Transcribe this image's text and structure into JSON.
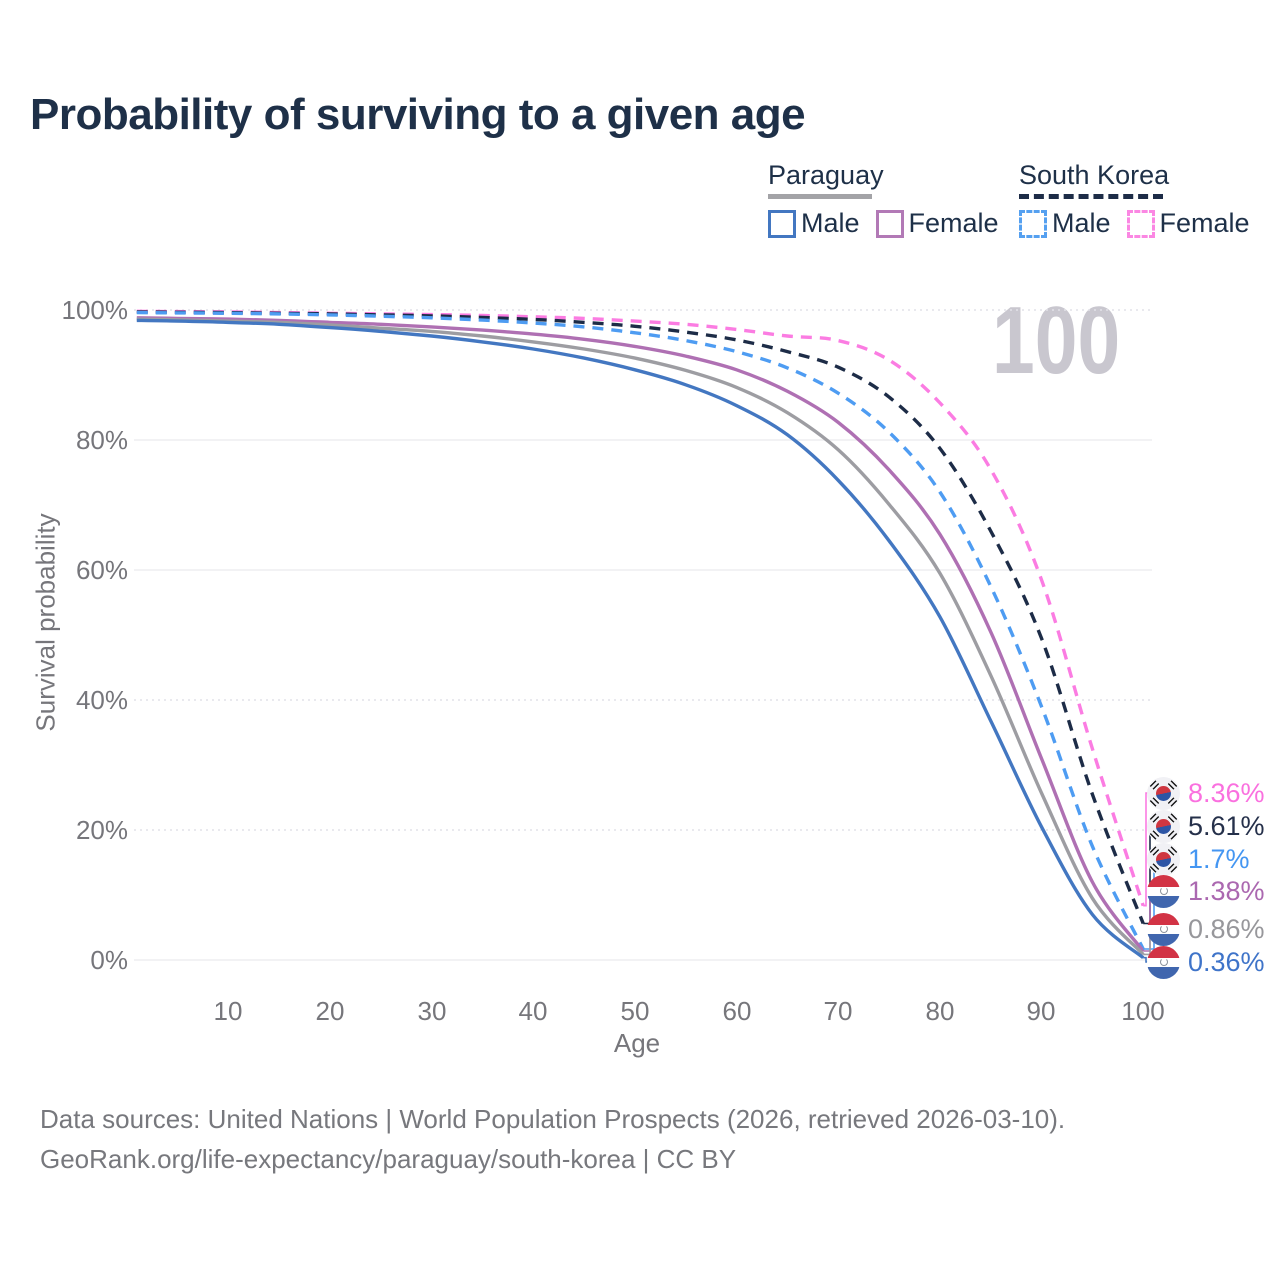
{
  "title": "Probability of surviving to a given age",
  "watermark": "100",
  "legend": {
    "groups": [
      {
        "country": "Paraguay",
        "line_style": "solid",
        "underline_color": "#a3a3a7",
        "items": [
          {
            "label": "Male",
            "color": "#4377c1"
          },
          {
            "label": "Female",
            "color": "#b279b6"
          }
        ]
      },
      {
        "country": "South Korea",
        "line_style": "dashed",
        "underline_color": "#1d2c47",
        "items": [
          {
            "label": "Male",
            "color": "#55a0f0"
          },
          {
            "label": "Female",
            "color": "#fb87e3"
          }
        ]
      }
    ]
  },
  "axes": {
    "y": {
      "label": "Survival probability",
      "ticks": [
        "100%",
        "80%",
        "60%",
        "40%",
        "20%",
        "0%"
      ]
    },
    "x": {
      "label": "Age",
      "ticks": [
        "10",
        "20",
        "30",
        "40",
        "50",
        "60",
        "70",
        "80",
        "90",
        "100"
      ]
    }
  },
  "end_labels": [
    {
      "value": "8.36%",
      "color": "#fa70df",
      "flag": "south-korea"
    },
    {
      "value": "5.61%",
      "color": "#25304a",
      "flag": "south-korea"
    },
    {
      "value": "1.7%",
      "color": "#4496f2",
      "flag": "south-korea"
    },
    {
      "value": "1.38%",
      "color": "#ab68b0",
      "flag": "paraguay"
    },
    {
      "value": "0.86%",
      "color": "#97979b",
      "flag": "paraguay"
    },
    {
      "value": "0.36%",
      "color": "#3f74c9",
      "flag": "paraguay"
    }
  ],
  "footer": {
    "line1": "Data sources: United Nations | World Population Prospects (2026, retrieved 2026-03-10).",
    "line2": "GeoRank.org/life-expectancy/paraguay/south-korea | CC BY"
  },
  "chart_data": {
    "type": "line",
    "title": "Probability of surviving to a given age",
    "xlabel": "Age",
    "ylabel": "Survival probability",
    "xlim": [
      1,
      100
    ],
    "ylim": [
      0,
      100
    ],
    "x_ticks": [
      10,
      20,
      30,
      40,
      50,
      60,
      70,
      80,
      90,
      100
    ],
    "y_ticks_pct": [
      0,
      20,
      40,
      60,
      80,
      100
    ],
    "grid": "horizontal-only",
    "legend_position": "top-right",
    "hover_age_indicator": 100,
    "x": [
      1,
      5,
      10,
      15,
      20,
      25,
      30,
      35,
      40,
      45,
      50,
      55,
      60,
      65,
      70,
      75,
      80,
      85,
      90,
      95,
      100
    ],
    "series": [
      {
        "name": "South Korea Female",
        "country": "South Korea",
        "sex": "Female",
        "line_style": "dashed",
        "color": "#fb7ce2",
        "end_label": "8.36%",
        "values": [
          99.8,
          99.75,
          99.7,
          99.6,
          99.5,
          99.4,
          99.3,
          99.15,
          98.95,
          98.7,
          98.3,
          97.8,
          97.0,
          96.0,
          95.3,
          92.3,
          85.7,
          75.5,
          58.5,
          32.5,
          8.36
        ]
      },
      {
        "name": "South Korea Both sexes",
        "country": "South Korea",
        "sex": "Both",
        "line_style": "dashed",
        "color": "#1d2c47",
        "end_label": "5.61%",
        "values": [
          99.7,
          99.65,
          99.6,
          99.5,
          99.4,
          99.25,
          99.1,
          98.85,
          98.55,
          98.1,
          97.5,
          96.6,
          95.4,
          93.6,
          91.2,
          86.6,
          78.7,
          66.0,
          49.5,
          25.5,
          5.61
        ]
      },
      {
        "name": "South Korea Male",
        "country": "South Korea",
        "sex": "Male",
        "line_style": "dashed",
        "color": "#4e9cf2",
        "end_label": "1.7%",
        "values": [
          99.6,
          99.55,
          99.5,
          99.4,
          99.25,
          99.05,
          98.8,
          98.45,
          98.0,
          97.4,
          96.5,
          95.3,
          93.6,
          91.1,
          87.2,
          81.2,
          72.0,
          57.5,
          39.0,
          17.5,
          1.7
        ]
      },
      {
        "name": "Paraguay Female",
        "country": "Paraguay",
        "sex": "Female",
        "line_style": "solid",
        "color": "#af70b3",
        "end_label": "1.38%",
        "values": [
          98.8,
          98.7,
          98.6,
          98.4,
          98.1,
          97.8,
          97.4,
          96.9,
          96.3,
          95.5,
          94.4,
          92.9,
          90.8,
          87.5,
          82.7,
          75.4,
          65.5,
          50.5,
          31.0,
          12.0,
          1.38
        ]
      },
      {
        "name": "Paraguay Both sexes",
        "country": "Paraguay",
        "sex": "Both",
        "line_style": "solid",
        "color": "#9d9da2",
        "end_label": "0.86%",
        "values": [
          98.6,
          98.5,
          98.3,
          98.1,
          97.7,
          97.2,
          96.7,
          96.0,
          95.1,
          94.0,
          92.6,
          90.7,
          88.1,
          84.2,
          78.5,
          70.1,
          59.5,
          43.8,
          25.7,
          9.5,
          0.86
        ]
      },
      {
        "name": "Paraguay Male",
        "country": "Paraguay",
        "sex": "Male",
        "line_style": "solid",
        "color": "#4377c1",
        "end_label": "0.36%",
        "values": [
          98.4,
          98.3,
          98.1,
          97.8,
          97.3,
          96.7,
          96.0,
          95.1,
          94.0,
          92.6,
          90.8,
          88.5,
          85.3,
          80.8,
          73.8,
          64.5,
          52.8,
          36.8,
          20.5,
          7.0,
          0.36
        ]
      }
    ]
  }
}
